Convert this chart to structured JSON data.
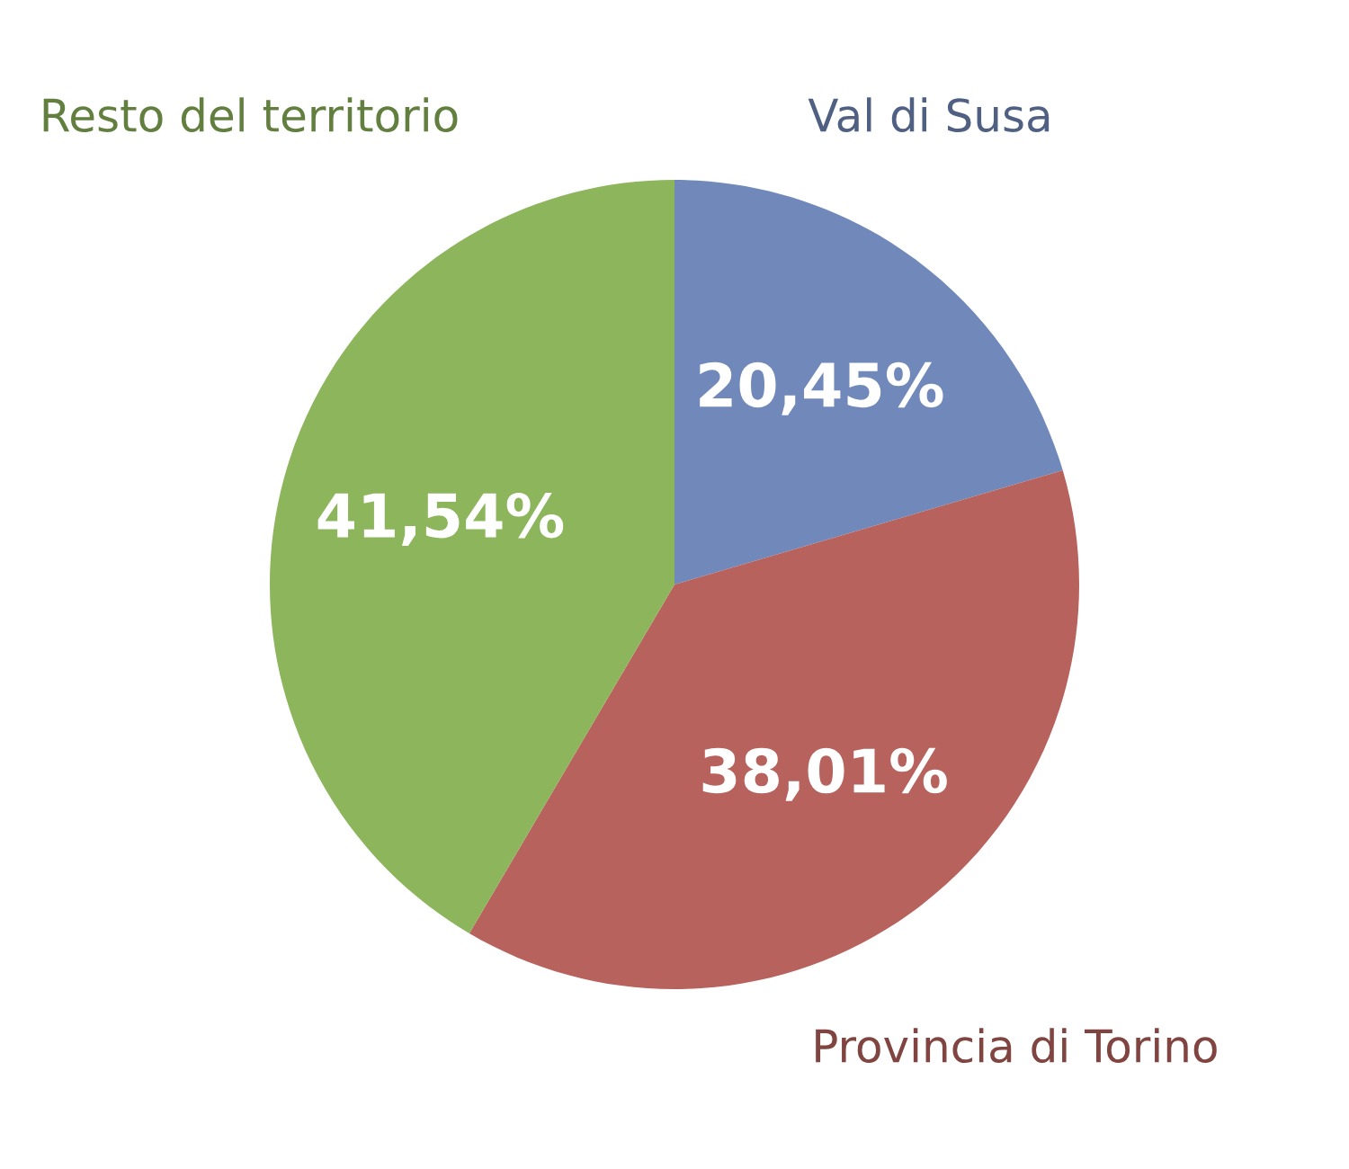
{
  "chart_data": {
    "type": "pie",
    "categories": [
      "Val di Susa",
      "Provincia di Torino",
      "Resto del territorio"
    ],
    "values": [
      20.45,
      38.01,
      41.54
    ],
    "value_labels": [
      "20,45%",
      "38,01%",
      "41,54%"
    ],
    "colors": [
      "#7189ba",
      "#b7625c",
      "#8cb55c"
    ],
    "legend": false
  }
}
